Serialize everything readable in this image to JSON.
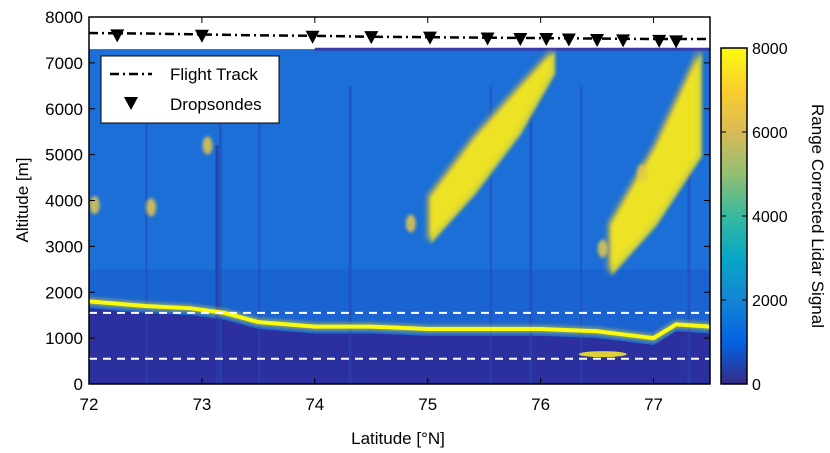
{
  "chart_data": {
    "type": "heatmap",
    "xlabel": "Latitude [°N]",
    "ylabel": "Altitude [m]",
    "xlim": [
      72,
      77.5
    ],
    "ylim": [
      0,
      8000
    ],
    "x_ticks": [
      72,
      73,
      74,
      75,
      76,
      77
    ],
    "y_ticks": [
      0,
      1000,
      2000,
      3000,
      4000,
      5000,
      6000,
      7000,
      8000
    ],
    "colorbar": {
      "label": "Range Corrected Lidar Signal",
      "range": [
        0,
        8000
      ],
      "ticks": [
        0,
        2000,
        4000,
        6000,
        8000
      ],
      "colormap": [
        "#352a87",
        "#0363e1",
        "#1485d4",
        "#06a7c6",
        "#38b99e",
        "#92bf73",
        "#d9ba56",
        "#fcce2e",
        "#f9fb0e"
      ]
    },
    "legend": {
      "position": "top-left",
      "entries": [
        {
          "label": "Flight Track",
          "style": "dash-dot line"
        },
        {
          "label": "Dropsondes",
          "style": "downward triangle marker"
        }
      ]
    },
    "flight_track": {
      "latitude": [
        72.0,
        72.5,
        73.0,
        73.5,
        74.0,
        74.5,
        75.0,
        75.5,
        76.0,
        76.5,
        77.0,
        77.5
      ],
      "altitude": [
        7650,
        7640,
        7620,
        7600,
        7590,
        7570,
        7560,
        7550,
        7540,
        7530,
        7520,
        7520
      ]
    },
    "dropsondes": {
      "latitude": [
        72.25,
        73.0,
        73.98,
        74.5,
        75.02,
        75.53,
        75.82,
        76.05,
        76.25,
        76.5,
        76.73,
        77.05,
        77.2
      ],
      "altitude": [
        7600,
        7590,
        7570,
        7560,
        7550,
        7530,
        7520,
        7520,
        7510,
        7500,
        7490,
        7480,
        7470
      ]
    },
    "reference_lines": [
      {
        "style": "white dashed",
        "altitude": 1550
      },
      {
        "style": "white dashed",
        "altitude": 550
      }
    ],
    "features": {
      "boundary_layer_cloud": {
        "latitude": [
          72.0,
          72.5,
          72.9,
          73.2,
          73.5,
          74.0,
          74.5,
          75.0,
          75.5,
          76.0,
          76.5,
          77.0,
          77.2,
          77.5
        ],
        "altitude": [
          1800,
          1700,
          1650,
          1550,
          1350,
          1250,
          1250,
          1200,
          1200,
          1200,
          1150,
          1000,
          1300,
          1250
        ]
      },
      "high_cloud_bands": [
        {
          "latitude": [
            75.0,
            75.4,
            75.8,
            76.1
          ],
          "altitude_bottom": [
            3100,
            4200,
            5500,
            6800
          ],
          "altitude_top": [
            4100,
            5400,
            6500,
            7300
          ]
        },
        {
          "latitude": [
            76.6,
            77.0,
            77.4
          ],
          "altitude_bottom": [
            2400,
            3500,
            5000
          ],
          "altitude_top": [
            3500,
            5200,
            7300
          ]
        }
      ]
    }
  }
}
